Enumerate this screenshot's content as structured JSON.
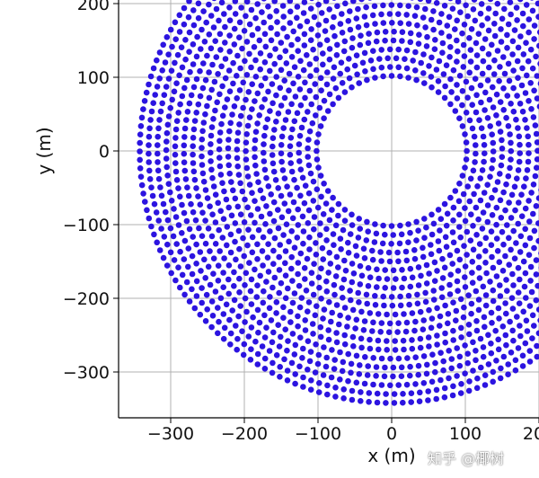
{
  "chart_data": {
    "type": "scatter",
    "title": "",
    "xlabel": "x (m)",
    "ylabel": "y (m)",
    "xlim": [
      -370,
      200
    ],
    "ylim": [
      -365,
      205
    ],
    "x_ticks": [
      -300,
      -200,
      -100,
      0,
      100,
      200
    ],
    "y_ticks": [
      -300,
      -200,
      -100,
      0,
      100,
      200
    ],
    "x_tick_labels": [
      "−300",
      "−200",
      "−100",
      "0",
      "100",
      "200"
    ],
    "y_tick_labels": [
      "−300",
      "−200",
      "−100",
      "0",
      "100",
      "200"
    ],
    "grid": true,
    "marker_color": "#2c14e0",
    "series": [
      {
        "pattern": "concentric rings of heliostat points",
        "center": [
          0,
          0
        ],
        "inner_radius": 102,
        "outer_radius": 342,
        "ring_spacing": 12,
        "point_spacing": 11.5
      }
    ]
  },
  "watermark": "知乎 @椰树"
}
